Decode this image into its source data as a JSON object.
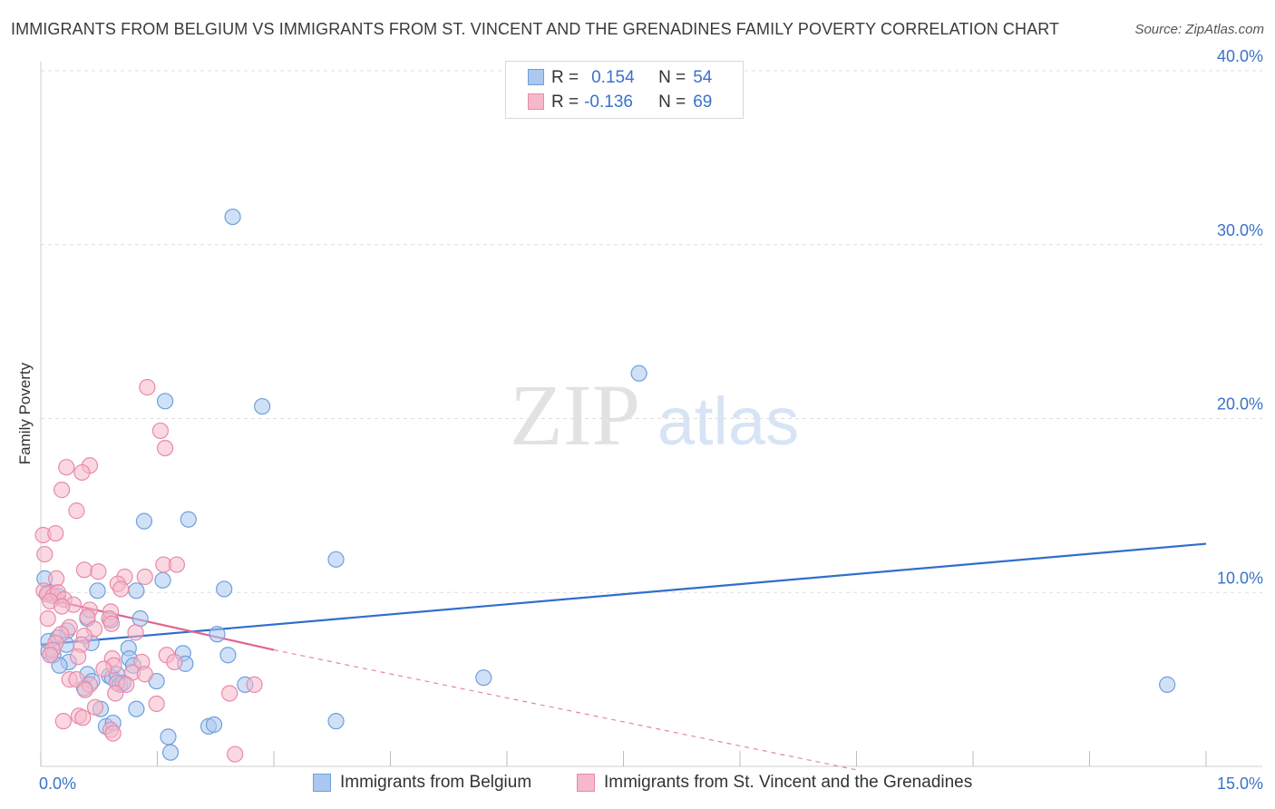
{
  "header": {
    "title": "IMMIGRANTS FROM BELGIUM VS IMMIGRANTS FROM ST. VINCENT AND THE GRENADINES FAMILY POVERTY CORRELATION CHART",
    "source": "Source: ZipAtlas.com"
  },
  "watermark": {
    "zip": "ZIP",
    "atlas": "atlas"
  },
  "legend": {
    "rows": [
      {
        "r_key": "R =",
        "r_value": "0.154",
        "n_key": "N =",
        "n_value": "54"
      },
      {
        "r_key": "R =",
        "r_value": "-0.136",
        "n_key": "N =",
        "n_value": "69"
      }
    ]
  },
  "bottom_legend": {
    "series1": "Immigrants from Belgium",
    "series2": "Immigrants from St. Vincent and the Grenadines"
  },
  "colors": {
    "series1_fill": "#aac8f0",
    "series1_stroke": "#6f9fdc",
    "series1_line": "#2f6fcc",
    "series2_fill": "#f6b8cb",
    "series2_stroke": "#e88aa8",
    "series2_line": "#e06592",
    "axis_label": "#3a72c8",
    "grid": "#dddddd"
  },
  "chart_data": {
    "type": "scatter",
    "title": "IMMIGRANTS FROM BELGIUM VS IMMIGRANTS FROM ST. VINCENT AND THE GRENADINES FAMILY POVERTY CORRELATION CHART",
    "xlabel": "",
    "ylabel": "Family Poverty",
    "xlim": [
      0,
      15
    ],
    "ylim": [
      0,
      40
    ],
    "x_tick_labels": [
      {
        "value": 0,
        "label": "0.0%"
      },
      {
        "value": 15,
        "label": "15.0%"
      }
    ],
    "y_tick_labels": [
      {
        "value": 10,
        "label": "10.0%"
      },
      {
        "value": 20,
        "label": "20.0%"
      },
      {
        "value": 30,
        "label": "30.0%"
      },
      {
        "value": 40,
        "label": "40.0%"
      }
    ],
    "x_minor_ticks": [
      0,
      1.5,
      3,
      4.5,
      6,
      7.5,
      9,
      10.5,
      12,
      13.5,
      15
    ],
    "grid": true,
    "series": [
      {
        "name": "Immigrants from Belgium",
        "R": 0.154,
        "N": 54,
        "trend": {
          "x0": 0,
          "y0": 7.0,
          "x1": 15,
          "y1": 12.8,
          "dashed_to": null
        },
        "points": [
          [
            2.47,
            31.6
          ],
          [
            7.7,
            22.6
          ],
          [
            1.6,
            21.0
          ],
          [
            2.85,
            20.7
          ],
          [
            1.33,
            14.1
          ],
          [
            1.9,
            14.2
          ],
          [
            3.8,
            11.9
          ],
          [
            0.05,
            10.8
          ],
          [
            1.57,
            10.7
          ],
          [
            0.73,
            10.1
          ],
          [
            1.23,
            10.1
          ],
          [
            2.36,
            10.2
          ],
          [
            0.1,
            10.0
          ],
          [
            0.22,
            9.8
          ],
          [
            0.6,
            8.5
          ],
          [
            0.9,
            8.4
          ],
          [
            1.28,
            8.5
          ],
          [
            0.34,
            7.8
          ],
          [
            2.27,
            7.6
          ],
          [
            0.1,
            7.2
          ],
          [
            0.22,
            7.4
          ],
          [
            0.33,
            7.0
          ],
          [
            0.65,
            7.1
          ],
          [
            1.13,
            6.8
          ],
          [
            0.1,
            6.6
          ],
          [
            0.16,
            6.4
          ],
          [
            1.83,
            6.5
          ],
          [
            2.41,
            6.4
          ],
          [
            0.36,
            6.0
          ],
          [
            1.14,
            6.2
          ],
          [
            0.24,
            5.8
          ],
          [
            1.19,
            5.8
          ],
          [
            1.86,
            5.9
          ],
          [
            0.6,
            5.3
          ],
          [
            0.88,
            5.2
          ],
          [
            0.92,
            5.1
          ],
          [
            0.98,
            5.3
          ],
          [
            0.66,
            4.9
          ],
          [
            1.02,
            4.7
          ],
          [
            1.06,
            4.8
          ],
          [
            1.49,
            4.9
          ],
          [
            2.63,
            4.7
          ],
          [
            5.7,
            5.1
          ],
          [
            14.5,
            4.7
          ],
          [
            0.56,
            4.5
          ],
          [
            0.77,
            3.3
          ],
          [
            1.23,
            3.3
          ],
          [
            0.84,
            2.3
          ],
          [
            0.93,
            2.5
          ],
          [
            2.16,
            2.3
          ],
          [
            2.23,
            2.4
          ],
          [
            3.8,
            2.6
          ],
          [
            1.64,
            1.7
          ],
          [
            1.67,
            0.8
          ]
        ]
      },
      {
        "name": "Immigrants from St. Vincent and the Grenadines",
        "R": -0.136,
        "N": 69,
        "trend": {
          "x0": 0,
          "y0": 9.7,
          "x1": 3.0,
          "y1": 6.7,
          "dashed_to": {
            "x": 10.5,
            "y": -0.2
          }
        },
        "points": [
          [
            1.37,
            21.8
          ],
          [
            1.54,
            19.3
          ],
          [
            1.6,
            18.3
          ],
          [
            0.33,
            17.2
          ],
          [
            0.63,
            17.3
          ],
          [
            0.53,
            16.9
          ],
          [
            0.27,
            15.9
          ],
          [
            0.46,
            14.7
          ],
          [
            0.03,
            13.3
          ],
          [
            0.19,
            13.4
          ],
          [
            0.05,
            12.2
          ],
          [
            0.56,
            11.3
          ],
          [
            0.74,
            11.2
          ],
          [
            1.58,
            11.6
          ],
          [
            1.75,
            11.6
          ],
          [
            1.08,
            10.9
          ],
          [
            1.34,
            10.9
          ],
          [
            0.2,
            10.8
          ],
          [
            0.99,
            10.5
          ],
          [
            1.03,
            10.2
          ],
          [
            0.04,
            10.1
          ],
          [
            0.08,
            9.9
          ],
          [
            0.16,
            9.8
          ],
          [
            0.22,
            10.0
          ],
          [
            0.3,
            9.6
          ],
          [
            0.42,
            9.3
          ],
          [
            0.12,
            9.5
          ],
          [
            0.27,
            9.2
          ],
          [
            0.63,
            9.0
          ],
          [
            0.9,
            8.9
          ],
          [
            0.6,
            8.6
          ],
          [
            0.88,
            8.5
          ],
          [
            0.09,
            8.5
          ],
          [
            0.91,
            8.2
          ],
          [
            0.37,
            8.0
          ],
          [
            0.69,
            7.9
          ],
          [
            0.26,
            7.6
          ],
          [
            0.56,
            7.5
          ],
          [
            1.22,
            7.7
          ],
          [
            0.19,
            7.1
          ],
          [
            0.52,
            7.0
          ],
          [
            0.15,
            6.7
          ],
          [
            0.12,
            6.4
          ],
          [
            0.48,
            6.3
          ],
          [
            0.92,
            6.2
          ],
          [
            1.3,
            6.0
          ],
          [
            1.62,
            6.4
          ],
          [
            1.72,
            6.0
          ],
          [
            0.94,
            5.8
          ],
          [
            0.81,
            5.6
          ],
          [
            1.18,
            5.4
          ],
          [
            1.34,
            5.3
          ],
          [
            0.37,
            5.0
          ],
          [
            0.46,
            5.0
          ],
          [
            0.63,
            4.7
          ],
          [
            0.98,
            4.8
          ],
          [
            1.1,
            4.7
          ],
          [
            0.57,
            4.4
          ],
          [
            2.75,
            4.7
          ],
          [
            0.96,
            4.2
          ],
          [
            2.43,
            4.2
          ],
          [
            1.49,
            3.6
          ],
          [
            0.7,
            3.4
          ],
          [
            0.49,
            2.9
          ],
          [
            0.54,
            2.8
          ],
          [
            0.29,
            2.6
          ],
          [
            0.9,
            2.1
          ],
          [
            0.93,
            1.9
          ],
          [
            2.5,
            0.7
          ]
        ]
      }
    ]
  }
}
